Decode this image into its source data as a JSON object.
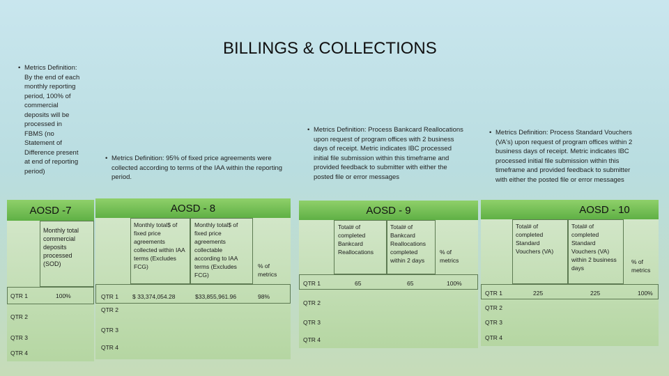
{
  "title": "BILLINGS & COLLECTIONS",
  "definitions": {
    "aosd7": "Metrics Definition: By the end of each monthly reporting period, 100% of commercial deposits will be processed in FBMS (no Statement of Difference present at end of reporting period)",
    "aosd8": "Metrics Definition: 95% of fixed price agreements were collected according to terms of the IAA within the reporting period.",
    "aosd9": "Metrics Definition: Process Bankcard Reallocations upon request of program offices with 2 business days of receipt. Metric indicates IBC processed initial file submission within this timeframe and provided feedback to submitter with either the posted file or error messages",
    "aosd10": "Metrics Definition: Process Standard Vouchers (VA's) upon request of program offices within 2 business days of receipt. Metric indicates IBC processed initial file submission within this timeframe and provided feedback to submitter with either the posted file or error messages"
  },
  "aosd7": {
    "heading": "AOSD -7",
    "column_header": "Monthly total commercial deposits processed (SOD)",
    "rows": [
      {
        "qtr": "QTR 1",
        "value": "100%"
      },
      {
        "qtr": "QTR 2",
        "value": ""
      },
      {
        "qtr": "QTR 3",
        "value": ""
      },
      {
        "qtr": "QTR 4",
        "value": ""
      }
    ]
  },
  "aosd8": {
    "heading": "AOSD - 8",
    "headers": [
      "Monthly total$ of fixed price agreements collected within IAA terms (Excludes FCG)",
      "Monthly total$ of fixed price agreements collectable according to IAA terms (Excludes FCG)",
      "% of metrics"
    ],
    "rows": [
      {
        "qtr": "QTR 1",
        "a": "$ 33,374,054.28",
        "b": "$33,855,961.96",
        "pct": "98%"
      },
      {
        "qtr": "QTR 2",
        "a": "",
        "b": "",
        "pct": ""
      },
      {
        "qtr": "QTR 3",
        "a": "",
        "b": "",
        "pct": ""
      },
      {
        "qtr": "QTR 4",
        "a": "",
        "b": "",
        "pct": ""
      }
    ]
  },
  "aosd9": {
    "heading": "AOSD - 9",
    "headers": [
      "Total# of completed Bankcard Reallocations",
      "Total# of Bankcard Reallocations completed within 2 days",
      "% of metrics"
    ],
    "rows": [
      {
        "qtr": "QTR 1",
        "a": "65",
        "b": "65",
        "pct": "100%"
      },
      {
        "qtr": "QTR 2",
        "a": "",
        "b": "",
        "pct": ""
      },
      {
        "qtr": "QTR 3",
        "a": "",
        "b": "",
        "pct": ""
      },
      {
        "qtr": "QTR 4",
        "a": "",
        "b": "",
        "pct": ""
      }
    ]
  },
  "aosd10": {
    "heading": "AOSD - 10",
    "headers": [
      "Total# of completed Standard Vouchers (VA)",
      "Total# of completed Standard Vouchers (VA) within 2 business days",
      "% of metrics"
    ],
    "rows": [
      {
        "qtr": "QTR 1",
        "a": "225",
        "b": "225",
        "pct": "100%"
      },
      {
        "qtr": "QTR 2",
        "a": "",
        "b": "",
        "pct": ""
      },
      {
        "qtr": "QTR 3",
        "a": "",
        "b": "",
        "pct": ""
      },
      {
        "qtr": "QTR 4",
        "a": "",
        "b": "",
        "pct": ""
      }
    ]
  }
}
